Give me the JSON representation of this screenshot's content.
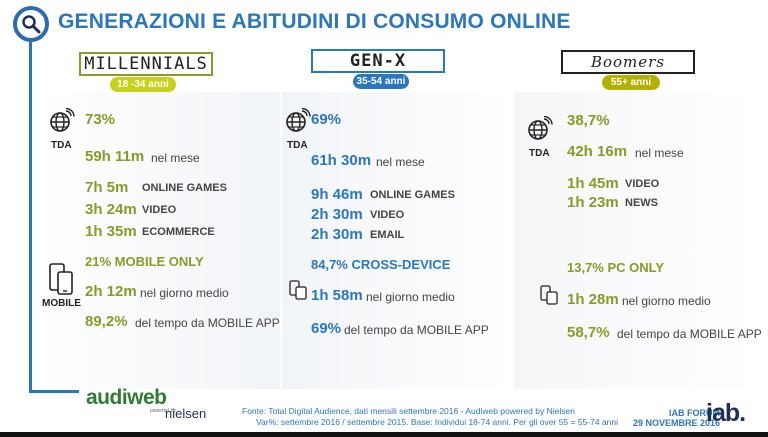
{
  "title": "GENERAZIONI E ABITUDINI DI CONSUMO ONLINE",
  "colors": {
    "accent": "#2b77bf",
    "highlight": "#8a9a26",
    "pill_yellow": "#c7d21a",
    "pill_blue": "#2b77bf",
    "pill_boomer": "#b4b000"
  },
  "icons": [
    "search-icon",
    "globe-icon",
    "smartphone-icon",
    "tablet-icon"
  ],
  "millennials": {
    "name": "MILLENNIALS",
    "age": "18 -34 anni",
    "tda_pct": "73%",
    "tda_label": "TDA",
    "time_value": "59h 11m",
    "time_desc": "nel mese",
    "activities": [
      {
        "value": "7h 5m",
        "label": "ONLINE GAMES"
      },
      {
        "value": "3h 24m",
        "label": "VIDEO"
      },
      {
        "value": "1h 35m",
        "label": "ECOMMERCE"
      }
    ],
    "mobile_only": "21% MOBILE ONLY",
    "mobile_label": "MOBILE",
    "mobile_time": "2h 12m",
    "mobile_time_desc": "nel giorno medio",
    "app_pct": "89,2%",
    "app_desc": "del tempo da MOBILE APP"
  },
  "genx": {
    "name": "GEN-X",
    "age": "35-54 anni",
    "tda_pct": "69%",
    "tda_label": "TDA",
    "time_value": "61h 30m",
    "time_desc": "nel mese",
    "activities": [
      {
        "value": "9h 46m",
        "label": "ONLINE GAMES"
      },
      {
        "value": "2h 30m",
        "label": "VIDEO"
      },
      {
        "value": "2h 30m",
        "label": "EMAIL"
      }
    ],
    "cross_device": "84,7% CROSS-DEVICE",
    "mobile_time": "1h 58m",
    "mobile_time_desc": "nel giorno medio",
    "app_pct": "69%",
    "app_desc": "del tempo da MOBILE APP"
  },
  "boomers": {
    "name": "Boomers",
    "age": "55+ anni",
    "tda_pct": "38,7%",
    "tda_label": "TDA",
    "time_value": "42h 16m",
    "time_desc": "nel mese",
    "activities": [
      {
        "value": "1h 45m",
        "label": "VIDEO"
      },
      {
        "value": "1h 23m",
        "label": "NEWS"
      }
    ],
    "pc_only": "13,7% PC ONLY",
    "mobile_time": "1h 28m",
    "mobile_time_desc": "nel giorno medio",
    "app_pct": "58,7%",
    "app_desc": "del tempo da MOBILE APP"
  },
  "footer": {
    "logo_audiweb": "audiweb",
    "logo_powered": "powered by",
    "logo_nielsen": "nielsen",
    "source_line1": "Fonte: Total Digital Audience, dati mensili settembre 2016 - Audiweb powered by Nielsen",
    "source_line2": "Var%: settembre 2016 / settembre 2015. Base: Individui 18-74 anni. Per gli over 55 = 55-74 anni",
    "forum_line1": "IAB FORUM",
    "forum_line2": "29 NOVEMBRE 2016",
    "iab": "iab."
  }
}
